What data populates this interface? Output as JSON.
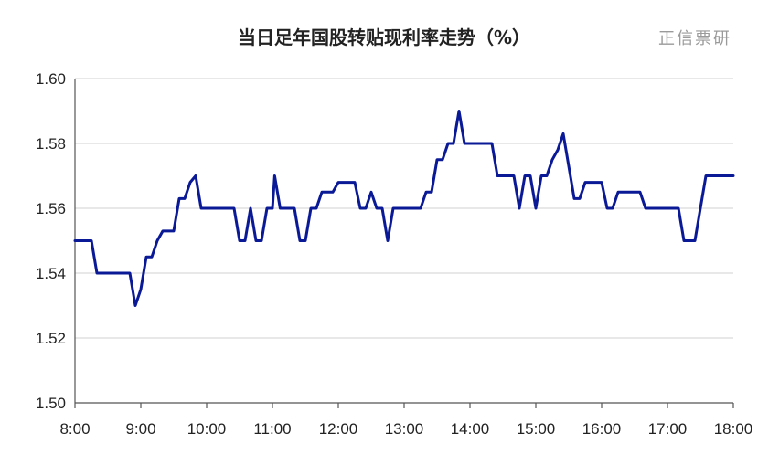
{
  "chart_data": {
    "type": "line",
    "title": "当日足年国股转贴现利率走势（%）",
    "watermark": "正信票研",
    "xlabel": "",
    "ylabel": "",
    "x_range_minutes": [
      480,
      1080
    ],
    "x_ticks": [
      "8:00",
      "9:00",
      "10:00",
      "11:00",
      "12:00",
      "13:00",
      "14:00",
      "15:00",
      "16:00",
      "17:00",
      "18:00"
    ],
    "ylim": [
      1.5,
      1.6
    ],
    "y_ticks": [
      "1.50",
      "1.52",
      "1.54",
      "1.56",
      "1.58",
      "1.60"
    ],
    "grid": true,
    "line_color": "#0a1a96",
    "series": [
      {
        "name": "",
        "points": [
          [
            "8:00",
            1.55
          ],
          [
            "8:15",
            1.55
          ],
          [
            "8:20",
            1.54
          ],
          [
            "8:25",
            1.54
          ],
          [
            "8:50",
            1.54
          ],
          [
            "8:55",
            1.53
          ],
          [
            "9:00",
            1.535
          ],
          [
            "9:05",
            1.545
          ],
          [
            "9:10",
            1.545
          ],
          [
            "9:15",
            1.55
          ],
          [
            "9:20",
            1.553
          ],
          [
            "9:30",
            1.553
          ],
          [
            "9:35",
            1.563
          ],
          [
            "9:40",
            1.563
          ],
          [
            "9:45",
            1.568
          ],
          [
            "9:50",
            1.57
          ],
          [
            "9:55",
            1.56
          ],
          [
            "10:25",
            1.56
          ],
          [
            "10:30",
            1.55
          ],
          [
            "10:35",
            1.55
          ],
          [
            "10:40",
            1.56
          ],
          [
            "10:45",
            1.55
          ],
          [
            "10:50",
            1.55
          ],
          [
            "10:55",
            1.56
          ],
          [
            "11:00",
            1.56
          ],
          [
            "11:02",
            1.57
          ],
          [
            "11:07",
            1.56
          ],
          [
            "11:20",
            1.56
          ],
          [
            "11:25",
            1.55
          ],
          [
            "11:30",
            1.55
          ],
          [
            "11:35",
            1.56
          ],
          [
            "11:40",
            1.56
          ],
          [
            "11:45",
            1.565
          ],
          [
            "11:55",
            1.565
          ],
          [
            "12:00",
            1.568
          ],
          [
            "12:15",
            1.568
          ],
          [
            "12:20",
            1.56
          ],
          [
            "12:25",
            1.56
          ],
          [
            "12:30",
            1.565
          ],
          [
            "12:35",
            1.56
          ],
          [
            "12:40",
            1.56
          ],
          [
            "12:45",
            1.55
          ],
          [
            "12:50",
            1.56
          ],
          [
            "13:15",
            1.56
          ],
          [
            "13:20",
            1.565
          ],
          [
            "13:25",
            1.565
          ],
          [
            "13:30",
            1.575
          ],
          [
            "13:35",
            1.575
          ],
          [
            "13:40",
            1.58
          ],
          [
            "13:45",
            1.58
          ],
          [
            "13:50",
            1.59
          ],
          [
            "13:55",
            1.58
          ],
          [
            "14:20",
            1.58
          ],
          [
            "14:25",
            1.57
          ],
          [
            "14:40",
            1.57
          ],
          [
            "14:45",
            1.56
          ],
          [
            "14:50",
            1.57
          ],
          [
            "14:55",
            1.57
          ],
          [
            "15:00",
            1.56
          ],
          [
            "15:05",
            1.57
          ],
          [
            "15:10",
            1.57
          ],
          [
            "15:15",
            1.575
          ],
          [
            "15:20",
            1.578
          ],
          [
            "15:25",
            1.583
          ],
          [
            "15:35",
            1.563
          ],
          [
            "15:40",
            1.563
          ],
          [
            "15:45",
            1.568
          ],
          [
            "16:00",
            1.568
          ],
          [
            "16:05",
            1.56
          ],
          [
            "16:10",
            1.56
          ],
          [
            "16:15",
            1.565
          ],
          [
            "16:35",
            1.565
          ],
          [
            "16:40",
            1.56
          ],
          [
            "17:10",
            1.56
          ],
          [
            "17:15",
            1.55
          ],
          [
            "17:25",
            1.55
          ],
          [
            "17:35",
            1.57
          ],
          [
            "18:00",
            1.57
          ]
        ]
      }
    ]
  }
}
